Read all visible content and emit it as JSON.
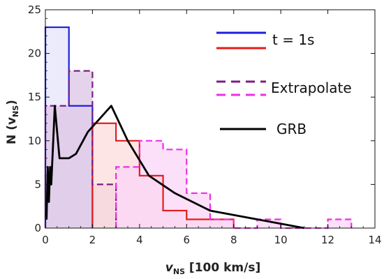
{
  "chart_data": {
    "type": "histogram",
    "xlabel_main": "v",
    "xlabel_sub": "NS",
    "xlabel_unit": "[100 km/s]",
    "ylabel_main": "N (v",
    "ylabel_sub": "NS",
    "ylabel_close": ")",
    "xlim": [
      0,
      14
    ],
    "ylim": [
      0,
      25
    ],
    "xticks": [
      0,
      2,
      4,
      6,
      8,
      10,
      12,
      14
    ],
    "yticks": [
      0,
      5,
      10,
      15,
      20,
      25
    ],
    "grid": false,
    "legend_position": "top-right",
    "legend": {
      "group1_label": "t = 1s",
      "group2_label": "Extrapolate",
      "group3_label": "GRB"
    },
    "series": [
      {
        "style": "step-filled",
        "color": "#1f1fe0",
        "fill": "#e4e4fb",
        "bin_edges": [
          0,
          1,
          2
        ],
        "counts": [
          23,
          14
        ]
      },
      {
        "style": "step-filled",
        "color": "#e41c1c",
        "fill": "#fcdcdc",
        "bin_edges": [
          2,
          3,
          4,
          5,
          6,
          7,
          8
        ],
        "counts": [
          12,
          10,
          6,
          2,
          1,
          1
        ]
      },
      {
        "style": "step-dashed",
        "color": "#7a1f80",
        "fill": "#dcc4e6",
        "bin_edges": [
          0,
          1,
          2,
          3
        ],
        "counts": [
          14,
          18,
          5
        ]
      },
      {
        "style": "step-dashed",
        "color": "#ef2ee6",
        "fill": "#fbd4f5",
        "bin_edges": [
          3,
          4,
          5,
          6,
          7,
          8,
          9,
          10,
          11,
          12,
          13
        ],
        "counts": [
          7,
          10,
          9,
          4,
          1,
          0,
          1,
          0,
          0,
          1
        ]
      },
      {
        "style": "line",
        "color": "#000000",
        "x": [
          0.05,
          0.1,
          0.15,
          0.2,
          0.25,
          0.3,
          0.4,
          0.6,
          1.0,
          1.3,
          1.8,
          2.8,
          3.5,
          4.4,
          5.5,
          7.0,
          9.0,
          11.0
        ],
        "y": [
          1,
          7,
          3,
          7,
          5,
          8,
          14,
          8,
          8,
          8.5,
          11,
          14,
          10,
          6,
          4,
          2,
          1,
          0
        ]
      }
    ]
  }
}
